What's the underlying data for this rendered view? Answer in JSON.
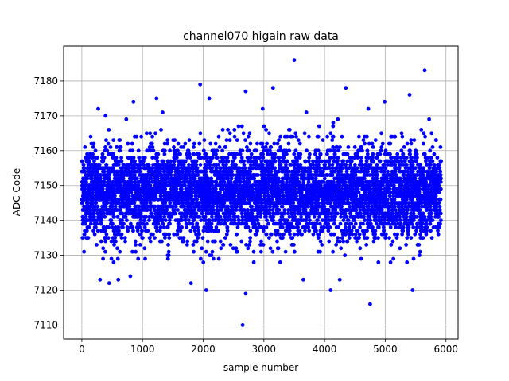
{
  "chart_data": {
    "type": "scatter",
    "title": "channel070 higain raw data",
    "xlabel": "sample number",
    "ylabel": "ADC Code",
    "xlim": [
      -300,
      6200
    ],
    "ylim": [
      7106,
      7190
    ],
    "xticks": [
      0,
      1000,
      2000,
      3000,
      4000,
      5000,
      6000
    ],
    "yticks": [
      7110,
      7120,
      7130,
      7140,
      7150,
      7160,
      7170,
      7180
    ],
    "grid": true,
    "marker_color": "#0000ff",
    "n_samples": 5920,
    "band": {
      "center": 7148,
      "typical_range": [
        7130,
        7168
      ]
    },
    "outliers": [
      {
        "x": 2650,
        "y": 7110
      },
      {
        "x": 2700,
        "y": 7119
      },
      {
        "x": 4750,
        "y": 7116
      },
      {
        "x": 2050,
        "y": 7120
      },
      {
        "x": 4100,
        "y": 7120
      },
      {
        "x": 5450,
        "y": 7120
      },
      {
        "x": 1800,
        "y": 7122
      },
      {
        "x": 450,
        "y": 7122
      },
      {
        "x": 300,
        "y": 7123
      },
      {
        "x": 4250,
        "y": 7123
      },
      {
        "x": 600,
        "y": 7123
      },
      {
        "x": 800,
        "y": 7124
      },
      {
        "x": 3650,
        "y": 7123
      },
      {
        "x": 1950,
        "y": 7179
      },
      {
        "x": 3500,
        "y": 7186
      },
      {
        "x": 5650,
        "y": 7183
      },
      {
        "x": 3150,
        "y": 7178
      },
      {
        "x": 4350,
        "y": 7178
      },
      {
        "x": 2700,
        "y": 7177
      },
      {
        "x": 5400,
        "y": 7176
      },
      {
        "x": 2100,
        "y": 7175
      },
      {
        "x": 1230,
        "y": 7175
      },
      {
        "x": 850,
        "y": 7174
      },
      {
        "x": 4990,
        "y": 7174
      },
      {
        "x": 270,
        "y": 7172
      },
      {
        "x": 1330,
        "y": 7171
      },
      {
        "x": 2980,
        "y": 7172
      },
      {
        "x": 3700,
        "y": 7171
      },
      {
        "x": 4720,
        "y": 7172
      }
    ]
  }
}
